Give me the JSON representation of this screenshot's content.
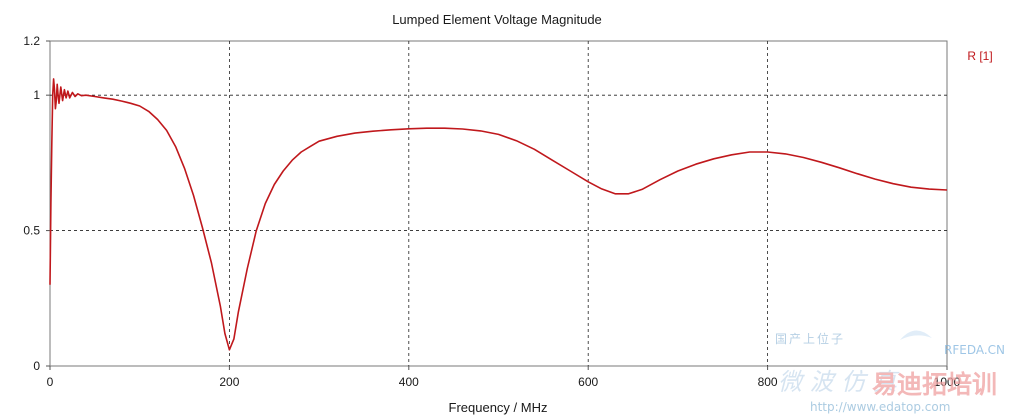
{
  "chart_data": {
    "type": "line",
    "title": "Lumped Element Voltage Magnitude",
    "xlabel": "Frequency / MHz",
    "ylabel": "",
    "xlim": [
      0,
      1000
    ],
    "ylim": [
      0,
      1.2
    ],
    "x_ticks": [
      0,
      200,
      400,
      600,
      800,
      1000
    ],
    "x_tick_labels": [
      "0",
      "200",
      "400",
      "600",
      "800",
      "1000"
    ],
    "y_ticks": [
      0,
      0.5,
      1,
      1.2
    ],
    "y_tick_labels": [
      "0",
      "0.5",
      "1",
      "1.2"
    ],
    "grid": true,
    "legend": "top-right",
    "series": [
      {
        "name": "R [1]",
        "color": "#c0181c",
        "x": [
          0,
          1,
          2,
          3,
          4,
          5,
          6,
          7,
          8,
          9,
          10,
          12,
          14,
          16,
          18,
          20,
          22,
          25,
          28,
          31,
          35,
          40,
          50,
          60,
          70,
          80,
          90,
          100,
          110,
          120,
          130,
          140,
          150,
          160,
          170,
          180,
          190,
          195,
          200,
          205,
          210,
          220,
          230,
          240,
          250,
          260,
          270,
          280,
          290,
          300,
          320,
          340,
          360,
          380,
          400,
          420,
          440,
          460,
          480,
          500,
          520,
          540,
          560,
          580,
          600,
          615,
          630,
          645,
          660,
          680,
          700,
          720,
          740,
          760,
          780,
          800,
          820,
          840,
          860,
          880,
          900,
          920,
          940,
          960,
          980,
          1000
        ],
        "y": [
          0.3,
          0.6,
          0.82,
          1.0,
          1.06,
          1.02,
          0.95,
          0.98,
          1.04,
          1.0,
          0.97,
          1.03,
          0.98,
          1.02,
          0.99,
          1.015,
          0.99,
          1.01,
          0.995,
          1.005,
          0.998,
          1.0,
          0.995,
          0.99,
          0.985,
          0.978,
          0.97,
          0.96,
          0.94,
          0.91,
          0.87,
          0.81,
          0.73,
          0.63,
          0.51,
          0.38,
          0.22,
          0.12,
          0.06,
          0.1,
          0.2,
          0.36,
          0.5,
          0.6,
          0.67,
          0.72,
          0.76,
          0.79,
          0.81,
          0.83,
          0.848,
          0.86,
          0.867,
          0.872,
          0.876,
          0.878,
          0.878,
          0.875,
          0.868,
          0.855,
          0.832,
          0.8,
          0.76,
          0.72,
          0.68,
          0.654,
          0.636,
          0.636,
          0.652,
          0.688,
          0.72,
          0.745,
          0.765,
          0.78,
          0.79,
          0.79,
          0.783,
          0.77,
          0.752,
          0.732,
          0.71,
          0.69,
          0.673,
          0.66,
          0.653,
          0.65
        ]
      }
    ]
  },
  "watermark": {
    "line1": "国产上位子",
    "brand": "RFEDA.CN",
    "line2": "微 波 仿 真",
    "cn_brand": "易迪拓培训",
    "url": "http://www.edatop.com"
  }
}
